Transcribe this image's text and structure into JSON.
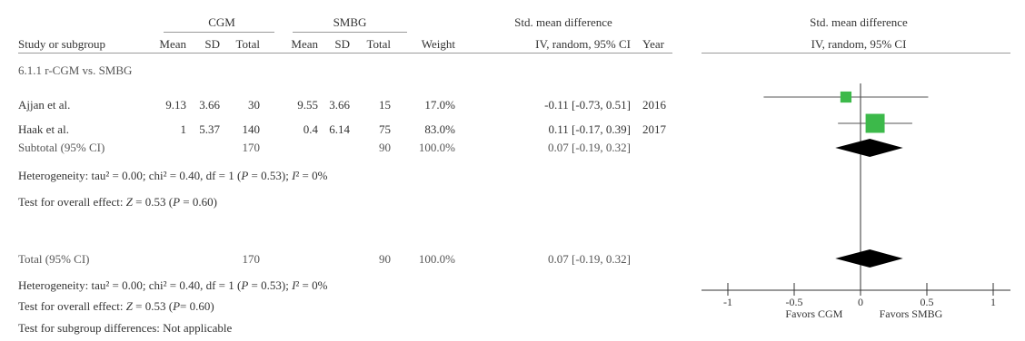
{
  "header": {
    "group_cgm": "CGM",
    "group_smbg": "SMBG",
    "smd_title": "Std. mean difference",
    "plot_title": "Std. mean difference",
    "plot_method": "IV, random, 95% CI",
    "cols": {
      "study": "Study or subgroup",
      "mean1": "Mean",
      "sd1": "SD",
      "total1": "Total",
      "mean2": "Mean",
      "sd2": "SD",
      "total2": "Total",
      "weight": "Weight",
      "ci": "IV, random, 95% CI",
      "year": "Year"
    }
  },
  "subgroup_label": "6.1.1 r-CGM vs. SMBG",
  "studies": [
    {
      "name": "Ajjan et al.",
      "mean1": "9.13",
      "sd1": "3.66",
      "total1": "30",
      "mean2": "9.55",
      "sd2": "3.66",
      "total2": "15",
      "weight": "17.0%",
      "ci": "-0.11 [-0.73, 0.51]",
      "year": "2016"
    },
    {
      "name": "Haak et al.",
      "mean1": "1",
      "sd1": "5.37",
      "total1": "140",
      "mean2": "0.4",
      "sd2": "6.14",
      "total2": "75",
      "weight": "83.0%",
      "ci": "0.11 [-0.17, 0.39]",
      "year": "2017"
    }
  ],
  "subtotal": {
    "label": "Subtotal (95% CI)",
    "total1": "170",
    "total2": "90",
    "weight": "100.0%",
    "ci": "0.07 [-0.19, 0.32]"
  },
  "het1": {
    "pre": "Heterogeneity: tau² = 0.00; chi² = 0.40, df = 1 (",
    "p": "P",
    "mid": " = 0.53); ",
    "i": "I",
    "post": "² = 0%"
  },
  "effect1": {
    "pre": "Test for overall effect: ",
    "z": "Z",
    "mid": " = 0.53 (",
    "p": "P",
    "post": " = 0.60)"
  },
  "total": {
    "label": "Total (95% CI)",
    "total1": "170",
    "total2": "90",
    "weight": "100.0%",
    "ci": "0.07 [-0.19, 0.32]"
  },
  "het2": {
    "pre": "Heterogeneity: tau² = 0.00; chi² = 0.40, df = 1 (",
    "p": "P",
    "mid": " = 0.53); ",
    "i": "I",
    "post": "² = 0%"
  },
  "effect2": {
    "pre": "Test for overall effect: ",
    "z": "Z",
    "mid": " = 0.53 (",
    "p": "P",
    "post": "= 0.60)"
  },
  "subgroup_diff": "Test for subgroup differences: Not applicable",
  "chart_data": {
    "type": "forest",
    "xlim": [
      -1.3,
      1.3
    ],
    "ticks": [
      -1,
      -0.5,
      0,
      0.5,
      1
    ],
    "tick_labels": [
      "-1",
      "-0.5",
      "0",
      "0.5",
      "1"
    ],
    "favors_left": "Favors CGM",
    "favors_right": "Favors SMBG",
    "colors": {
      "square": "#3cb94a",
      "diamond": "#000000",
      "line": "#555555"
    },
    "studies": [
      {
        "name": "Ajjan et al.",
        "est": -0.11,
        "lo": -0.73,
        "hi": 0.51,
        "weight": 17.0
      },
      {
        "name": "Haak et al.",
        "est": 0.11,
        "lo": -0.17,
        "hi": 0.39,
        "weight": 83.0
      }
    ],
    "subtotal": {
      "est": 0.07,
      "lo": -0.19,
      "hi": 0.32
    },
    "total": {
      "est": 0.07,
      "lo": -0.19,
      "hi": 0.32
    }
  }
}
